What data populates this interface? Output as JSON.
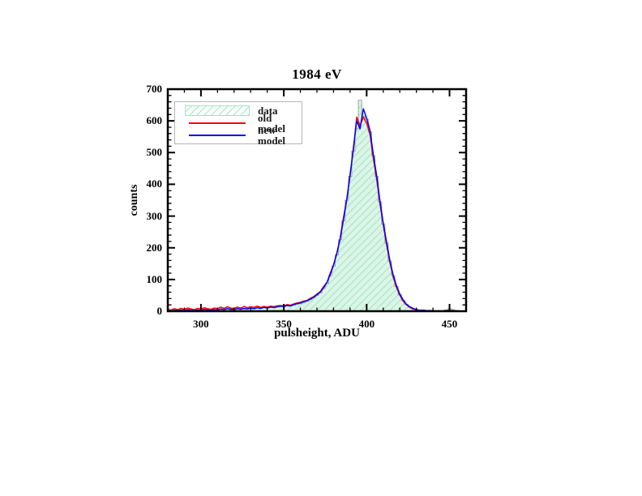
{
  "page": {
    "background": "#ffffff"
  },
  "chart": {
    "title": "1984 eV",
    "xlabel": "pulsheight, ADU",
    "ylabel": "counts"
  },
  "legend": {
    "items": [
      {
        "label": "data",
        "swatch": "hatch"
      },
      {
        "label": "old model",
        "swatch": "line",
        "color": "#ff0000"
      },
      {
        "label": "new model",
        "swatch": "line",
        "color": "#0000ff"
      }
    ]
  },
  "colors": {
    "frame": "#000000",
    "data_fill": "#dcf5e6",
    "data_hatch": "#9fe7c3",
    "data_edge": "#93a89b",
    "old_model": "#ff0000",
    "new_model": "#0000ff"
  },
  "chart_data": {
    "type": "bar",
    "subtype": "step-histogram-with-line-overlays",
    "title": "1984 eV",
    "xlabel": "pulsheight, ADU",
    "ylabel": "counts",
    "xlim": [
      280,
      460
    ],
    "ylim": [
      0,
      700
    ],
    "xticks": [
      300,
      350,
      400,
      450
    ],
    "yticks": [
      0,
      100,
      200,
      300,
      400,
      500,
      600,
      700
    ],
    "x_minor_step": 10,
    "y_minor_step": 20,
    "grid": false,
    "legend_position": "upper-left",
    "bin_width": 2,
    "x": [
      280,
      282,
      284,
      286,
      288,
      290,
      292,
      294,
      296,
      298,
      300,
      302,
      304,
      306,
      308,
      310,
      312,
      314,
      316,
      318,
      320,
      322,
      324,
      326,
      328,
      330,
      332,
      334,
      336,
      338,
      340,
      342,
      344,
      346,
      348,
      350,
      352,
      354,
      356,
      358,
      360,
      362,
      364,
      366,
      368,
      370,
      372,
      374,
      376,
      378,
      380,
      382,
      384,
      386,
      388,
      390,
      392,
      394,
      396,
      398,
      400,
      402,
      404,
      406,
      408,
      410,
      412,
      414,
      416,
      418,
      420,
      422,
      424,
      426,
      428,
      430,
      432,
      434,
      436,
      438,
      440,
      442,
      444,
      446,
      448,
      450,
      452,
      454,
      456,
      458,
      460
    ],
    "series": [
      {
        "name": "data",
        "style": "filled-histogram",
        "values": [
          2,
          1,
          3,
          2,
          3,
          2,
          4,
          3,
          2,
          4,
          3,
          5,
          4,
          3,
          5,
          4,
          6,
          5,
          7,
          5,
          6,
          7,
          6,
          8,
          7,
          9,
          8,
          10,
          9,
          11,
          10,
          12,
          11,
          13,
          15,
          14,
          17,
          16,
          19,
          22,
          24,
          27,
          31,
          36,
          42,
          50,
          58,
          72,
          88,
          112,
          142,
          178,
          225,
          285,
          350,
          425,
          505,
          575,
          665,
          615,
          605,
          565,
          490,
          425,
          345,
          275,
          215,
          158,
          112,
          78,
          52,
          34,
          21,
          13,
          8,
          5,
          3,
          4,
          2,
          3,
          2,
          1,
          2,
          1,
          4,
          8,
          5,
          2,
          1,
          0,
          0
        ]
      },
      {
        "name": "old model",
        "style": "line",
        "color": "#ff0000",
        "values": [
          6,
          4,
          8,
          5,
          9,
          6,
          10,
          7,
          5,
          9,
          7,
          11,
          8,
          6,
          10,
          8,
          13,
          9,
          14,
          10,
          9,
          13,
          10,
          15,
          11,
          14,
          12,
          16,
          12,
          15,
          13,
          16,
          14,
          17,
          18,
          17,
          21,
          19,
          23,
          26,
          28,
          32,
          34,
          41,
          46,
          54,
          62,
          78,
          90,
          120,
          146,
          183,
          230,
          295,
          352,
          432,
          508,
          612,
          585,
          612,
          592,
          558,
          482,
          418,
          340,
          272,
          210,
          154,
          108,
          75,
          50,
          32,
          20,
          12,
          7,
          4,
          3,
          3,
          2,
          2,
          2,
          1,
          1,
          1,
          2,
          3,
          2,
          1,
          1,
          0,
          0
        ]
      },
      {
        "name": "new model",
        "style": "line",
        "color": "#0000ff",
        "values": [
          2,
          1,
          3,
          2,
          4,
          2,
          5,
          3,
          2,
          4,
          3,
          6,
          4,
          3,
          5,
          4,
          7,
          5,
          8,
          6,
          5,
          8,
          6,
          9,
          7,
          10,
          8,
          11,
          9,
          12,
          10,
          13,
          12,
          14,
          16,
          15,
          18,
          17,
          21,
          24,
          26,
          30,
          33,
          38,
          44,
          52,
          60,
          74,
          90,
          115,
          145,
          182,
          228,
          288,
          352,
          428,
          515,
          600,
          575,
          638,
          608,
          570,
          495,
          428,
          348,
          278,
          218,
          160,
          114,
          80,
          54,
          36,
          22,
          14,
          9,
          5,
          3,
          3,
          2,
          2,
          1,
          1,
          1,
          1,
          2,
          2,
          1,
          1,
          0,
          0,
          0
        ]
      }
    ]
  }
}
